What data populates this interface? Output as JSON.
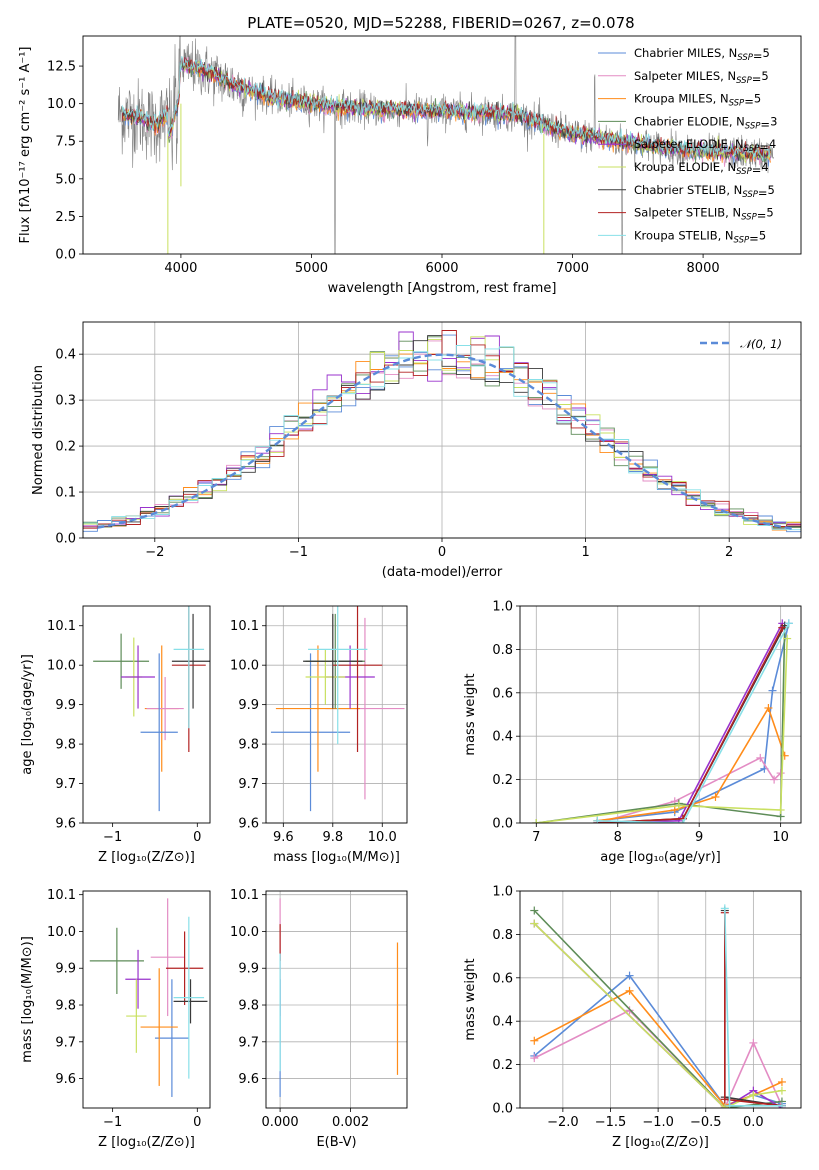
{
  "figure": {
    "title": "PLATE=0520, MJD=52288, FIBERID=0267, z=0.078"
  },
  "colors": {
    "chabrier_miles": "#5b8bd8",
    "salpeter_miles": "#e38cc4",
    "kroupa_miles": "#ff8c1a",
    "chabrier_elodie": "#5e8c58",
    "salpeter_elodie": "#9932cc",
    "kroupa_elodie": "#c9e060",
    "chabrier_stelib": "#3a3a3a",
    "salpeter_stelib": "#b22222",
    "kroupa_stelib": "#88e0e8",
    "data": "#7f7f7f",
    "normal": "#5b8bd8"
  },
  "chart_data": [
    {
      "id": "spectrum",
      "type": "line",
      "xlabel": "wavelength [Angstrom, rest frame]",
      "ylabel": "Flux [fλ10⁻¹⁷ erg cm⁻² s⁻¹ A⁻¹]",
      "xlim": [
        3250,
        8750
      ],
      "ylim": [
        0,
        14.5
      ],
      "xticks": [
        4000,
        5000,
        6000,
        7000,
        8000
      ],
      "yticks": [
        0.0,
        2.5,
        5.0,
        7.5,
        10.0,
        12.5
      ],
      "grid": false,
      "legend_position": "upper right",
      "legend": [
        {
          "model": "Chabrier MILES",
          "n": "5",
          "color_key": "chabrier_miles"
        },
        {
          "model": "Salpeter MILES",
          "n": "5",
          "color_key": "salpeter_miles"
        },
        {
          "model": "Kroupa MILES",
          "n": "5",
          "color_key": "kroupa_miles"
        },
        {
          "model": "Chabrier ELODIE",
          "n": "3",
          "color_key": "chabrier_elodie"
        },
        {
          "model": "Salpeter ELODIE",
          "n": "4",
          "color_key": "salpeter_elodie"
        },
        {
          "model": "Kroupa ELODIE",
          "n": "4",
          "color_key": "kroupa_elodie"
        },
        {
          "model": "Chabrier STELIB",
          "n": "5",
          "color_key": "chabrier_stelib"
        },
        {
          "model": "Salpeter STELIB",
          "n": "5",
          "color_key": "salpeter_stelib"
        },
        {
          "model": "Kroupa STELIB",
          "n": "5",
          "color_key": "kroupa_stelib"
        }
      ],
      "continuum": [
        [
          3550,
          9.3
        ],
        [
          3700,
          9.0
        ],
        [
          3800,
          8.6
        ],
        [
          3900,
          9.2
        ],
        [
          3950,
          10.5
        ],
        [
          4000,
          12.6
        ],
        [
          4150,
          12.3
        ],
        [
          4400,
          11.3
        ],
        [
          4700,
          10.4
        ],
        [
          5000,
          10.0
        ],
        [
          5300,
          9.7
        ],
        [
          5600,
          9.6
        ],
        [
          6000,
          9.5
        ],
        [
          6400,
          9.4
        ],
        [
          6600,
          9.2
        ],
        [
          6800,
          8.5
        ],
        [
          7000,
          8.0
        ],
        [
          7300,
          7.6
        ],
        [
          7600,
          7.2
        ],
        [
          8000,
          6.8
        ],
        [
          8300,
          6.7
        ],
        [
          8500,
          6.6
        ]
      ],
      "data_range": [
        3520,
        8540
      ],
      "model_range": [
        3550,
        8520
      ]
    },
    {
      "id": "residual_histogram",
      "type": "histogram",
      "xlabel": "(data-model)/error",
      "ylabel": "Normed distribution",
      "xlim": [
        -2.5,
        2.5
      ],
      "ylim": [
        0,
        0.47
      ],
      "xticks": [
        -2,
        -1,
        0,
        1,
        2
      ],
      "yticks": [
        0.0,
        0.1,
        0.2,
        0.3,
        0.4
      ],
      "grid": true,
      "bins": 50,
      "legend_position": "upper right",
      "legend": [
        {
          "label": "𝒩(0, 1)",
          "color_key": "normal",
          "style": "dashed"
        }
      ],
      "normal_mu": 0,
      "normal_sigma": 1
    },
    {
      "id": "age_vs_Z",
      "type": "errorbar",
      "xlabel": "Z [log₁₀(Z/Z⊙)]",
      "ylabel": "age  [log₁₀(age/yr)]",
      "xlim": [
        -1.35,
        0.15
      ],
      "ylim": [
        9.6,
        10.15
      ],
      "xticks": [
        -1,
        0
      ],
      "yticks": [
        9.6,
        9.7,
        9.8,
        9.9,
        10.0,
        10.1
      ],
      "grid": false,
      "points": [
        {
          "color_key": "chabrier_elodie",
          "x": -0.9,
          "xerr": 0.33,
          "y": 10.01,
          "yerr": 0.07
        },
        {
          "color_key": "kroupa_elodie",
          "x": -0.75,
          "xerr": 0.1,
          "y": 9.97,
          "yerr": 0.1
        },
        {
          "color_key": "salpeter_elodie",
          "x": -0.7,
          "xerr": 0.2,
          "y": 9.97,
          "yerr": 0.08
        },
        {
          "color_key": "kroupa_miles",
          "x": -0.42,
          "xerr": 0.2,
          "y": 9.89,
          "yerr": 0.16
        },
        {
          "color_key": "salpeter_miles",
          "x": -0.38,
          "xerr": 0.22,
          "y": 9.89,
          "yerr": 0.08
        },
        {
          "color_key": "chabrier_miles",
          "x": -0.45,
          "xerr": 0.22,
          "y": 9.83,
          "yerr": 0.2
        },
        {
          "color_key": "chabrier_stelib",
          "x": -0.05,
          "xerr": 0.25,
          "y": 10.01,
          "yerr": 0.12
        },
        {
          "color_key": "salpeter_stelib",
          "x": -0.1,
          "xerr": 0.2,
          "y": 10.0,
          "yerr": 0.22
        },
        {
          "color_key": "kroupa_stelib",
          "x": -0.1,
          "xerr": 0.18,
          "y": 10.04,
          "yerr": 0.2
        }
      ]
    },
    {
      "id": "age_vs_mass",
      "type": "errorbar",
      "xlabel": "mass [log₁₀(M/M⊙)]",
      "ylabel": "",
      "xlim": [
        9.53,
        10.1
      ],
      "ylim": [
        9.6,
        10.15
      ],
      "xticks": [
        9.6,
        9.8,
        10.0
      ],
      "yticks": [
        9.6,
        9.7,
        9.8,
        9.9,
        10.0,
        10.1
      ],
      "grid": true,
      "points": [
        {
          "color_key": "chabrier_miles",
          "x": 9.71,
          "xerr": 0.16,
          "y": 9.83,
          "yerr": 0.2
        },
        {
          "color_key": "salpeter_miles",
          "x": 9.93,
          "xerr": 0.16,
          "y": 9.89,
          "yerr": 0.23
        },
        {
          "color_key": "kroupa_miles",
          "x": 9.74,
          "xerr": 0.17,
          "y": 9.89,
          "yerr": 0.16
        },
        {
          "color_key": "chabrier_elodie",
          "x": 9.81,
          "xerr": 0.12,
          "y": 10.01,
          "yerr": 0.12
        },
        {
          "color_key": "salpeter_elodie",
          "x": 9.87,
          "xerr": 0.1,
          "y": 9.97,
          "yerr": 0.08
        },
        {
          "color_key": "kroupa_elodie",
          "x": 9.77,
          "xerr": 0.08,
          "y": 9.97,
          "yerr": 0.07
        },
        {
          "color_key": "chabrier_stelib",
          "x": 9.8,
          "xerr": 0.12,
          "y": 10.01,
          "yerr": 0.12
        },
        {
          "color_key": "salpeter_stelib",
          "x": 9.9,
          "xerr": 0.1,
          "y": 10.0,
          "yerr": 0.22
        },
        {
          "color_key": "kroupa_stelib",
          "x": 9.82,
          "xerr": 0.12,
          "y": 10.04,
          "yerr": 0.24
        }
      ]
    },
    {
      "id": "mass_weight_vs_age",
      "type": "line",
      "xlabel": "age  [log₁₀(age/yr)]",
      "ylabel": "mass weight",
      "xlim": [
        6.8,
        10.25
      ],
      "ylim": [
        0,
        1.0
      ],
      "xticks": [
        7,
        8,
        9,
        10
      ],
      "yticks": [
        0.0,
        0.2,
        0.4,
        0.6,
        0.8,
        1.0
      ],
      "grid": true,
      "series": [
        {
          "color_key": "chabrier_miles",
          "x": [
            7.75,
            8.7,
            9.8,
            9.9,
            10.1
          ],
          "y": [
            0.01,
            0.05,
            0.25,
            0.61,
            0.92
          ]
        },
        {
          "color_key": "salpeter_miles",
          "x": [
            7.75,
            8.7,
            9.75,
            9.92,
            10.0
          ],
          "y": [
            0.0,
            0.1,
            0.3,
            0.2,
            0.23
          ]
        },
        {
          "color_key": "kroupa_miles",
          "x": [
            7.75,
            8.7,
            9.2,
            9.85,
            10.05
          ],
          "y": [
            0.01,
            0.06,
            0.12,
            0.53,
            0.31
          ]
        },
        {
          "color_key": "chabrier_elodie",
          "x": [
            7.0,
            8.75,
            10.0,
            10.05
          ],
          "y": [
            0.0,
            0.09,
            0.03,
            0.9
          ]
        },
        {
          "color_key": "salpeter_elodie",
          "x": [
            7.75,
            8.75,
            10.02
          ],
          "y": [
            0.0,
            0.01,
            0.92
          ]
        },
        {
          "color_key": "kroupa_elodie",
          "x": [
            7.0,
            8.75,
            10.0,
            10.08
          ],
          "y": [
            0.0,
            0.08,
            0.06,
            0.85
          ]
        },
        {
          "color_key": "chabrier_stelib",
          "x": [
            7.75,
            8.8,
            10.05
          ],
          "y": [
            0.0,
            0.02,
            0.91
          ]
        },
        {
          "color_key": "salpeter_stelib",
          "x": [
            7.75,
            8.8,
            10.02
          ],
          "y": [
            0.0,
            0.02,
            0.9
          ]
        },
        {
          "color_key": "kroupa_stelib",
          "x": [
            7.75,
            8.8,
            10.1
          ],
          "y": [
            0.01,
            0.0,
            0.92
          ]
        }
      ]
    },
    {
      "id": "mass_vs_Z",
      "type": "errorbar",
      "xlabel": "Z [log₁₀(Z/Z⊙)]",
      "ylabel": "mass [log₁₀(M/M⊙)]",
      "xlim": [
        -1.35,
        0.15
      ],
      "ylim": [
        9.52,
        10.11
      ],
      "xticks": [
        -1,
        0
      ],
      "yticks": [
        9.6,
        9.7,
        9.8,
        9.9,
        10.0,
        10.1
      ],
      "grid": false,
      "points": [
        {
          "color_key": "chabrier_elodie",
          "x": -0.95,
          "xerr": 0.32,
          "y": 9.92,
          "yerr": 0.09
        },
        {
          "color_key": "salpeter_elodie",
          "x": -0.7,
          "xerr": 0.15,
          "y": 9.87,
          "yerr": 0.08
        },
        {
          "color_key": "kroupa_elodie",
          "x": -0.72,
          "xerr": 0.12,
          "y": 9.77,
          "yerr": 0.1
        },
        {
          "color_key": "chabrier_miles",
          "x": -0.3,
          "xerr": 0.2,
          "y": 9.71,
          "yerr": 0.16
        },
        {
          "color_key": "kroupa_miles",
          "x": -0.45,
          "xerr": 0.22,
          "y": 9.74,
          "yerr": 0.16
        },
        {
          "color_key": "salpeter_miles",
          "x": -0.35,
          "xerr": 0.2,
          "y": 9.93,
          "yerr": 0.16
        },
        {
          "color_key": "salpeter_stelib",
          "x": -0.15,
          "xerr": 0.22,
          "y": 9.9,
          "yerr": 0.1
        },
        {
          "color_key": "chabrier_stelib",
          "x": -0.08,
          "xerr": 0.2,
          "y": 9.81,
          "yerr": 0.06
        },
        {
          "color_key": "kroupa_stelib",
          "x": -0.1,
          "xerr": 0.18,
          "y": 9.82,
          "yerr": 0.22
        }
      ]
    },
    {
      "id": "mass_vs_EBV",
      "type": "errorbar",
      "xlabel": "E(B-V)",
      "ylabel": "",
      "xlim": [
        -0.0004,
        0.0036
      ],
      "ylim": [
        9.52,
        10.11
      ],
      "xticks": [
        0.0,
        0.002
      ],
      "xtick_labels": [
        "0.000",
        "0.002"
      ],
      "yticks": [
        9.6,
        9.7,
        9.8,
        9.9,
        10.0,
        10.1
      ],
      "grid": true,
      "points": [
        {
          "color_key": "salpeter_miles",
          "x": 0.0,
          "xerr": 0,
          "y": 9.93,
          "yerr": 0.16
        },
        {
          "color_key": "chabrier_miles",
          "x": 0.0,
          "xerr": 0,
          "y": 9.71,
          "yerr": 0.16
        },
        {
          "color_key": "salpeter_stelib",
          "x": 0.0,
          "xerr": 0,
          "y": 9.97,
          "yerr": 0.05
        },
        {
          "color_key": "kroupa_stelib",
          "x": 0.0,
          "xerr": 0,
          "y": 9.78,
          "yerr": 0.16
        },
        {
          "color_key": "kroupa_miles",
          "x": 0.00333,
          "xerr": 0,
          "y": 9.79,
          "yerr": 0.18
        }
      ]
    },
    {
      "id": "mass_weight_vs_Z",
      "type": "line",
      "xlabel": "Z [log₁₀(Z/Z⊙)]",
      "ylabel": "mass weight",
      "xlim": [
        -2.45,
        0.5
      ],
      "ylim": [
        0,
        1.0
      ],
      "xticks": [
        -2.0,
        -1.5,
        -1.0,
        -0.5,
        0.0
      ],
      "xtick_labels": [
        "−2.0",
        "−1.5",
        "−1.0",
        "−0.5",
        "0.0"
      ],
      "yticks": [
        0.0,
        0.2,
        0.4,
        0.6,
        0.8,
        1.0
      ],
      "grid": true,
      "series": [
        {
          "color_key": "chabrier_miles",
          "x": [
            -2.3,
            -1.3,
            -0.3,
            0.0,
            0.3
          ],
          "y": [
            0.24,
            0.61,
            0.01,
            0.06,
            0.02
          ]
        },
        {
          "color_key": "salpeter_miles",
          "x": [
            -2.3,
            -1.3,
            -0.3,
            0.0,
            0.3
          ],
          "y": [
            0.23,
            0.45,
            0.0,
            0.3,
            0.01
          ]
        },
        {
          "color_key": "kroupa_miles",
          "x": [
            -2.3,
            -1.3,
            -0.3,
            0.0,
            0.3
          ],
          "y": [
            0.31,
            0.54,
            0.01,
            0.06,
            0.12
          ]
        },
        {
          "color_key": "chabrier_elodie",
          "x": [
            -2.3,
            -0.3,
            0.3
          ],
          "y": [
            0.91,
            0.0,
            0.03
          ]
        },
        {
          "color_key": "salpeter_elodie",
          "x": [
            -2.3,
            -0.3,
            0.0,
            0.3
          ],
          "y": [
            0.85,
            0.0,
            0.08,
            0.0
          ]
        },
        {
          "color_key": "kroupa_elodie",
          "x": [
            -2.3,
            -0.3,
            0.0,
            0.3
          ],
          "y": [
            0.85,
            0.0,
            0.06,
            0.08
          ]
        },
        {
          "color_key": "chabrier_stelib",
          "x": [
            -0.3,
            -0.3,
            0.3
          ],
          "y": [
            0.91,
            0.05,
            0.01
          ]
        },
        {
          "color_key": "salpeter_stelib",
          "x": [
            -0.3,
            -0.3,
            0.3
          ],
          "y": [
            0.9,
            0.04,
            0.01
          ]
        },
        {
          "color_key": "kroupa_stelib",
          "x": [
            -0.3,
            -0.25,
            0.3
          ],
          "y": [
            0.92,
            0.01,
            0.01
          ]
        }
      ]
    }
  ]
}
